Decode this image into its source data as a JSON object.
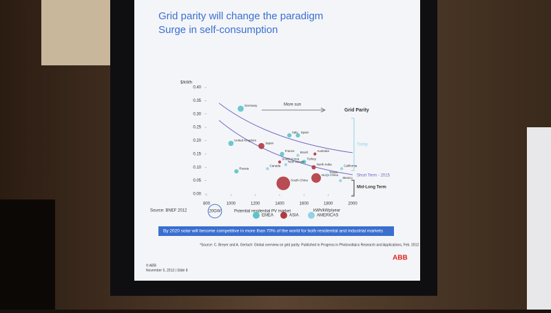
{
  "chart_data": {
    "type": "bubble",
    "title": "Grid parity will change the paradigm",
    "subtitle": "Surge in self-consumption",
    "y_label": "$/kWh",
    "x_label": "kWh/kWp/year",
    "xlim": [
      800,
      2000
    ],
    "xticks": [
      800,
      1000,
      1200,
      1400,
      1600,
      1800,
      2000
    ],
    "ylim": [
      0,
      0.4
    ],
    "yticks": [
      {
        "value": 0,
        "label": "0.00"
      },
      0.05,
      {
        "value": 0.1,
        "label": "0.10"
      },
      0.15,
      {
        "value": 0.2,
        "label": "0.20"
      },
      0.25,
      {
        "value": 0.3,
        "label": "0.30"
      },
      0.35,
      {
        "value": 0.4,
        "label": "0.40"
      }
    ],
    "series": [
      {
        "name": "EMEA",
        "color": "#5cc3c9",
        "labels": [
          "Germany",
          "United Kingdom",
          "Italy",
          "Spain",
          "France",
          "Turkey",
          "Russia"
        ],
        "x": [
          1080,
          1000,
          1480,
          1550,
          1420,
          1600,
          1045
        ],
        "values": [
          0.32,
          0.19,
          0.22,
          0.22,
          0.15,
          0.12,
          0.085
        ],
        "sizes": [
          4,
          3,
          2,
          2,
          2,
          2,
          2
        ]
      },
      {
        "name": "ASIA",
        "color": "#b03a3f",
        "labels": [
          "Japan",
          "Australia",
          "South Korea",
          "North India",
          "South China",
          "North China"
        ],
        "x": [
          1250,
          1690,
          1400,
          1680,
          1430,
          1700
        ],
        "values": [
          0.18,
          0.15,
          0.12,
          0.1,
          0.04,
          0.06
        ],
        "sizes": [
          4,
          1,
          1,
          2,
          20,
          10
        ]
      },
      {
        "name": "AMERICAS",
        "color": "#8fd3e8",
        "labels": [
          "Brazil",
          "New Jersey",
          "Canada",
          "California",
          "Texas",
          "Mexico"
        ],
        "x": [
          1550,
          1450,
          1300,
          1910,
          1790,
          1900
        ],
        "values": [
          0.145,
          0.11,
          0.095,
          0.095,
          0.07,
          0.05
        ],
        "sizes": [
          1,
          1,
          1,
          1,
          1,
          1
        ]
      }
    ],
    "more_sun": "More sun",
    "grid_parity": "Grid Parity",
    "zones": [
      "Today",
      "Short Term - 2015",
      "Mid-Long Term"
    ],
    "source_note": "Source: BNEF 2012",
    "size_legend": {
      "label": "20GW",
      "size": 20,
      "text": "Potential residential PV market"
    },
    "banner": "By 2020 solar will become competitive in more than 70% of the world for both residential and industrial markets",
    "footnote": "*Source: C. Breyer and A. Gerlach: Global overview on grid parity. Published in Progress in Photovoltaics Research and Applications, Feb. 2012",
    "logo": "ABB",
    "copyright": "© ABB",
    "date": "November 5, 2013 | Slide 8"
  }
}
